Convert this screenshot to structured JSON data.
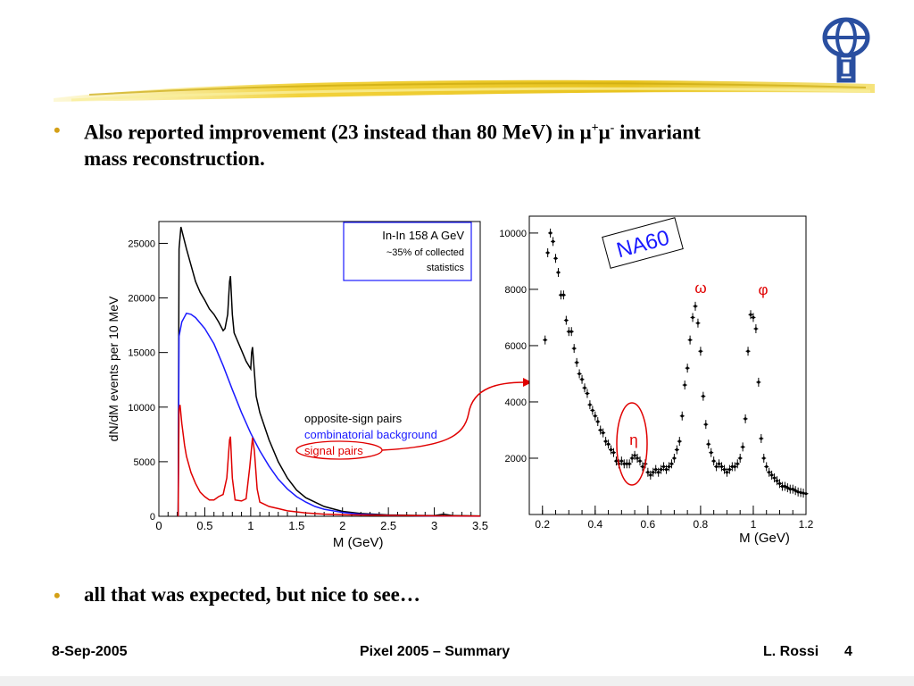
{
  "slide": {
    "bullets": [
      {
        "text_before": "Also reported improvement (23 instead than 80 MeV) in ",
        "mu": "μ",
        "sup_plus": "+",
        "mu2": "μ",
        "sup_minus": "-",
        "text_after": " invariant",
        "line2": "mass reconstruction."
      },
      {
        "text": "all that was expected, but nice to see…"
      }
    ],
    "footer": {
      "date": "8-Sep-2005",
      "title": "Pixel 2005 – Summary",
      "author": "L. Rossi",
      "page": "4"
    }
  },
  "chart_data": [
    {
      "type": "line",
      "ylabel": "dN/dM events per 10 MeV",
      "xlabel": "M (GeV)",
      "xlim": [
        0,
        3.5
      ],
      "ylim": [
        0,
        27000
      ],
      "x_ticks": [
        "0",
        "0.5",
        "1",
        "1.5",
        "2",
        "2.5",
        "3",
        "3.5"
      ],
      "y_ticks": [
        "0",
        "5000",
        "10000",
        "15000",
        "20000",
        "25000"
      ],
      "info_box": {
        "line1": "In-In 158 A GeV",
        "line2": "~35% of collected",
        "line3": "statistics"
      },
      "legend": [
        "opposite-sign pairs",
        "combinatorial background",
        "signal pairs"
      ],
      "series": [
        {
          "name": "opposite-sign pairs",
          "color": "#000000",
          "x": [
            0.21,
            0.22,
            0.24,
            0.27,
            0.3,
            0.35,
            0.4,
            0.45,
            0.5,
            0.55,
            0.6,
            0.65,
            0.7,
            0.72,
            0.75,
            0.77,
            0.78,
            0.8,
            0.82,
            0.85,
            0.9,
            0.95,
            1.0,
            1.01,
            1.02,
            1.04,
            1.06,
            1.1,
            1.2,
            1.3,
            1.4,
            1.5,
            1.6,
            1.8,
            2.0,
            2.2,
            2.5,
            2.8,
            3.0,
            3.1,
            3.2,
            3.5
          ],
          "y": [
            0,
            24500,
            26500,
            25500,
            24500,
            23000,
            21500,
            20500,
            19800,
            19000,
            18500,
            17800,
            17000,
            17200,
            18500,
            21500,
            22000,
            18500,
            16800,
            16200,
            15200,
            14200,
            13500,
            15000,
            15500,
            13200,
            11000,
            9500,
            7000,
            5000,
            3500,
            2400,
            1700,
            900,
            450,
            250,
            120,
            80,
            60,
            200,
            60,
            30
          ]
        },
        {
          "name": "combinatorial background",
          "color": "#1a1aff",
          "x": [
            0.21,
            0.22,
            0.25,
            0.3,
            0.35,
            0.4,
            0.5,
            0.6,
            0.7,
            0.8,
            0.9,
            1.0,
            1.1,
            1.2,
            1.3,
            1.4,
            1.5,
            1.6,
            1.7,
            1.8,
            2.0,
            2.2,
            2.5,
            3.0,
            3.5
          ],
          "y": [
            0,
            16500,
            17800,
            18600,
            18500,
            18200,
            17200,
            15800,
            13800,
            11600,
            9500,
            7600,
            6000,
            4600,
            3400,
            2500,
            1800,
            1300,
            900,
            650,
            350,
            180,
            80,
            30,
            10
          ]
        },
        {
          "name": "signal pairs",
          "color": "#e00000",
          "x": [
            0.21,
            0.22,
            0.23,
            0.25,
            0.28,
            0.3,
            0.35,
            0.4,
            0.45,
            0.5,
            0.55,
            0.6,
            0.65,
            0.7,
            0.74,
            0.77,
            0.78,
            0.8,
            0.83,
            0.9,
            0.95,
            0.99,
            1.02,
            1.04,
            1.07,
            1.1,
            1.2,
            1.3,
            1.4,
            1.6,
            1.8,
            2.0,
            2.5,
            3.0,
            3.5
          ],
          "y": [
            0,
            9800,
            10200,
            8500,
            6500,
            5500,
            4000,
            3000,
            2200,
            1800,
            1500,
            1500,
            1800,
            2000,
            3500,
            7000,
            7300,
            3500,
            1500,
            1400,
            1600,
            4500,
            7200,
            6000,
            2500,
            1300,
            900,
            700,
            500,
            300,
            200,
            150,
            80,
            40,
            20
          ]
        }
      ]
    },
    {
      "type": "scatter",
      "xlabel": "M (GeV)",
      "xlim": [
        0.15,
        1.2
      ],
      "ylim": [
        0,
        10600
      ],
      "x_ticks": [
        "0.2",
        "0.4",
        "0.6",
        "0.8",
        "1",
        "1.2"
      ],
      "y_ticks": [
        "2000",
        "4000",
        "6000",
        "8000",
        "10000"
      ],
      "badge": "NA60",
      "annotations": {
        "omega": "ω",
        "phi": "φ",
        "eta": "η"
      },
      "series": [
        {
          "name": "",
          "color": "#000000",
          "x": [
            0.21,
            0.22,
            0.23,
            0.24,
            0.25,
            0.26,
            0.27,
            0.28,
            0.29,
            0.3,
            0.31,
            0.32,
            0.33,
            0.34,
            0.35,
            0.36,
            0.37,
            0.38,
            0.39,
            0.4,
            0.41,
            0.42,
            0.43,
            0.44,
            0.45,
            0.46,
            0.47,
            0.48,
            0.49,
            0.5,
            0.51,
            0.52,
            0.53,
            0.54,
            0.55,
            0.56,
            0.57,
            0.58,
            0.59,
            0.6,
            0.61,
            0.62,
            0.63,
            0.64,
            0.65,
            0.66,
            0.67,
            0.68,
            0.69,
            0.7,
            0.71,
            0.72,
            0.73,
            0.74,
            0.75,
            0.76,
            0.77,
            0.78,
            0.79,
            0.8,
            0.81,
            0.82,
            0.83,
            0.84,
            0.85,
            0.86,
            0.87,
            0.88,
            0.89,
            0.9,
            0.91,
            0.92,
            0.93,
            0.94,
            0.95,
            0.96,
            0.97,
            0.98,
            0.99,
            1.0,
            1.01,
            1.02,
            1.03,
            1.04,
            1.05,
            1.06,
            1.07,
            1.08,
            1.09,
            1.1,
            1.11,
            1.12,
            1.13,
            1.14,
            1.15,
            1.16,
            1.17,
            1.18,
            1.19,
            1.2
          ],
          "y": [
            6200,
            9300,
            10000,
            9700,
            9100,
            8600,
            7800,
            7800,
            6900,
            6500,
            6500,
            5900,
            5400,
            5000,
            4800,
            4500,
            4300,
            3900,
            3700,
            3500,
            3300,
            3000,
            2900,
            2600,
            2500,
            2300,
            2200,
            1900,
            1800,
            1900,
            1800,
            1800,
            1800,
            2000,
            2100,
            2000,
            1900,
            1700,
            1800,
            1500,
            1400,
            1500,
            1600,
            1500,
            1600,
            1700,
            1600,
            1700,
            1800,
            2000,
            2300,
            2600,
            3500,
            4600,
            5200,
            6200,
            7000,
            7400,
            6800,
            5800,
            4200,
            3200,
            2500,
            2200,
            1900,
            1700,
            1800,
            1700,
            1600,
            1500,
            1600,
            1700,
            1700,
            1800,
            2000,
            2400,
            3400,
            5800,
            7100,
            7000,
            6600,
            4700,
            2700,
            2000,
            1700,
            1500,
            1400,
            1300,
            1200,
            1100,
            1000,
            1000,
            950,
            900,
            900,
            850,
            800,
            780,
            760,
            740
          ]
        }
      ]
    }
  ]
}
